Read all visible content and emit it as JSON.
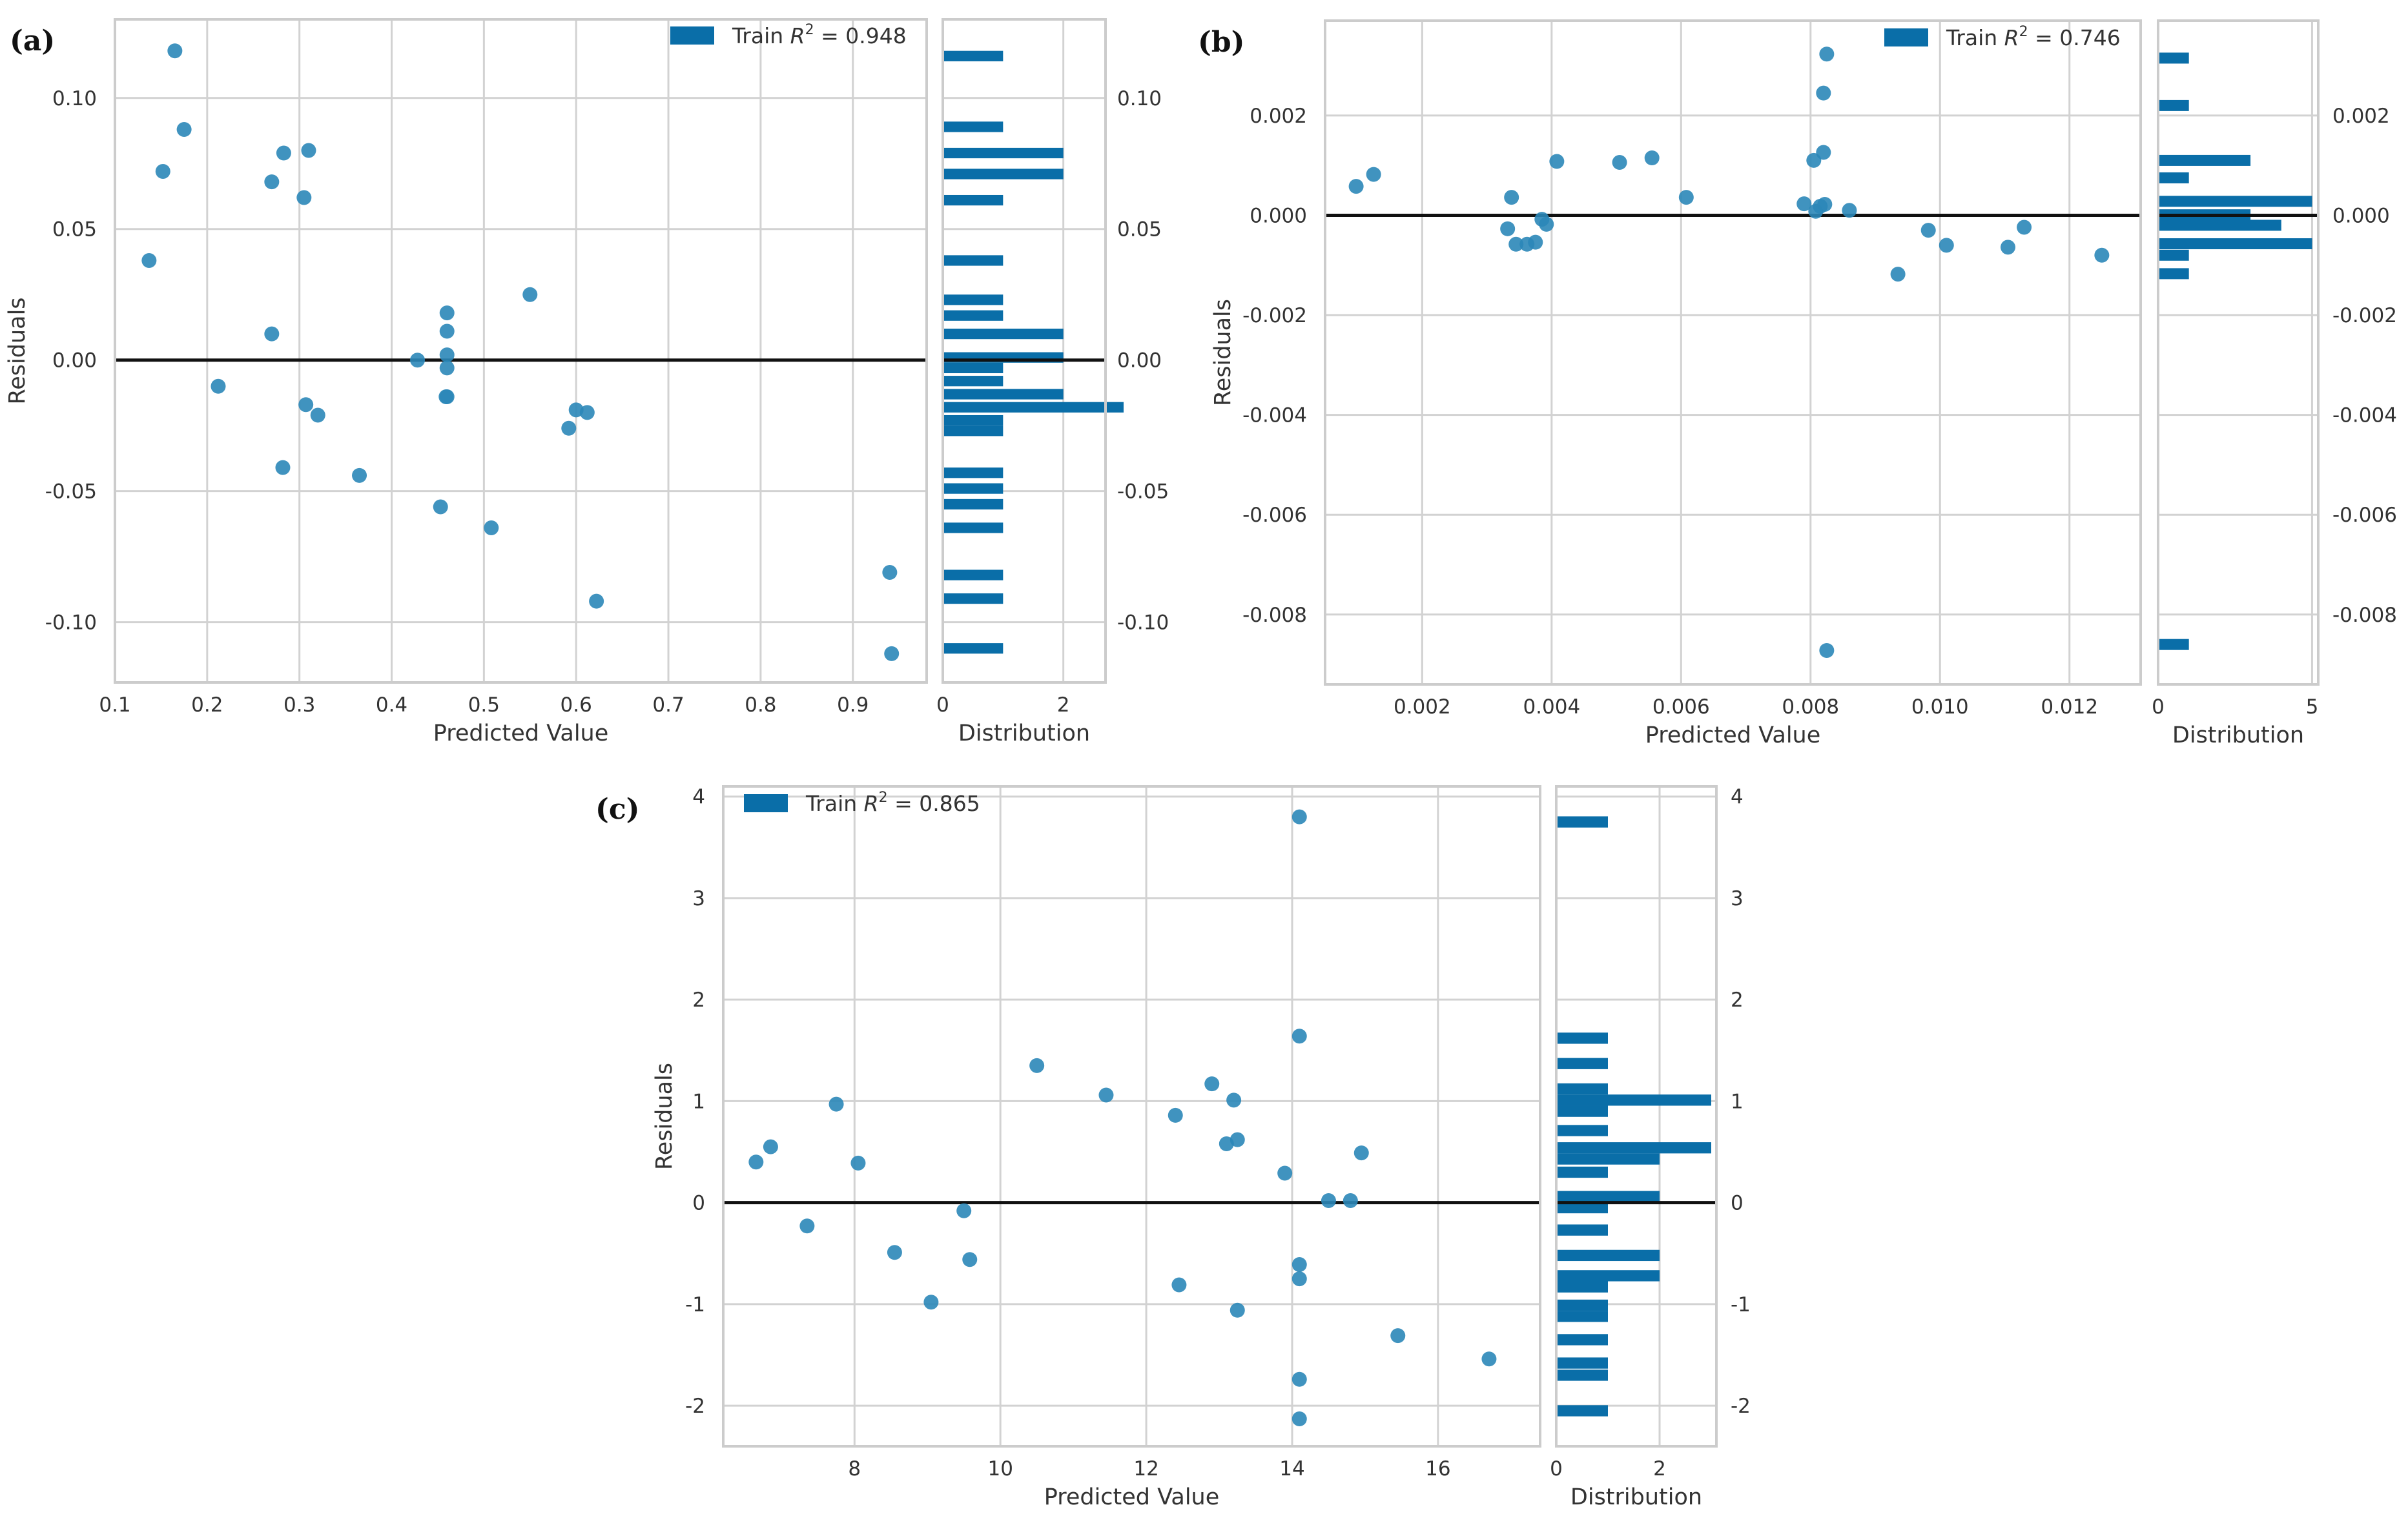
{
  "colors": {
    "point": "#2b87b8",
    "bar": "#0a6ea8",
    "grid": "#d2d2d2",
    "frame": "#cccccc",
    "zero": "#111111"
  },
  "chart_data": [
    {
      "id": "a",
      "panel_label": "(a)",
      "type": "scatter",
      "title": "",
      "xlabel": "Predicted Value",
      "ylabel": "Residuals",
      "hist_xlabel": "Distribution",
      "legend": {
        "name": "Train",
        "r2_label": "R",
        "r2_exp": "2",
        "r2_value": "= 0.948"
      },
      "xlim": [
        0.1,
        0.98
      ],
      "ylim": [
        -0.123,
        0.13
      ],
      "xticks": [
        0.1,
        0.2,
        0.3,
        0.4,
        0.5,
        0.6,
        0.7,
        0.8,
        0.9
      ],
      "xtick_labels": [
        "0.1",
        "0.2",
        "0.3",
        "0.4",
        "0.5",
        "0.6",
        "0.7",
        "0.8",
        "0.9"
      ],
      "yticks": [
        0.1,
        0.05,
        0.0,
        -0.05,
        -0.1
      ],
      "ytick_labels": [
        "0.10",
        "0.05",
        "0.00",
        "-0.05",
        "-0.10"
      ],
      "points": [
        [
          0.165,
          0.118
        ],
        [
          0.175,
          0.088
        ],
        [
          0.152,
          0.072
        ],
        [
          0.137,
          0.038
        ],
        [
          0.283,
          0.079
        ],
        [
          0.31,
          0.08
        ],
        [
          0.27,
          0.068
        ],
        [
          0.305,
          0.062
        ],
        [
          0.27,
          0.01
        ],
        [
          0.212,
          -0.01
        ],
        [
          0.307,
          -0.017
        ],
        [
          0.32,
          -0.021
        ],
        [
          0.282,
          -0.041
        ],
        [
          0.365,
          -0.044
        ],
        [
          0.428,
          0.0
        ],
        [
          0.46,
          0.018
        ],
        [
          0.46,
          0.011
        ],
        [
          0.46,
          0.002
        ],
        [
          0.46,
          -0.003
        ],
        [
          0.46,
          -0.014
        ],
        [
          0.459,
          -0.014
        ],
        [
          0.453,
          -0.056
        ],
        [
          0.508,
          -0.064
        ],
        [
          0.55,
          0.025
        ],
        [
          0.6,
          -0.019
        ],
        [
          0.612,
          -0.02
        ],
        [
          0.592,
          -0.026
        ],
        [
          0.622,
          -0.092
        ],
        [
          0.94,
          -0.081
        ],
        [
          0.942,
          -0.112
        ]
      ],
      "hist": {
        "xlim": [
          0,
          2.7
        ],
        "xticks": [
          0,
          2
        ],
        "xtick_labels": [
          "0",
          "2"
        ],
        "bin_height": 0.004,
        "bins": [
          [
            0.116,
            1
          ],
          [
            0.089,
            1
          ],
          [
            0.079,
            2
          ],
          [
            0.071,
            2
          ],
          [
            0.061,
            1
          ],
          [
            0.038,
            1
          ],
          [
            0.023,
            1
          ],
          [
            0.017,
            1
          ],
          [
            0.01,
            2
          ],
          [
            0.001,
            2
          ],
          [
            -0.003,
            1
          ],
          [
            -0.008,
            1
          ],
          [
            -0.013,
            2
          ],
          [
            -0.018,
            3
          ],
          [
            -0.023,
            1
          ],
          [
            -0.027,
            1
          ],
          [
            -0.043,
            1
          ],
          [
            -0.049,
            1
          ],
          [
            -0.055,
            1
          ],
          [
            -0.064,
            1
          ],
          [
            -0.082,
            1
          ],
          [
            -0.091,
            1
          ],
          [
            -0.11,
            1
          ]
        ]
      },
      "right_ytick_labels": [
        "0.10",
        "0.05",
        "0.00",
        "-0.05",
        "-0.10"
      ]
    },
    {
      "id": "b",
      "panel_label": "(b)",
      "type": "scatter",
      "title": "",
      "xlabel": "Predicted Value",
      "ylabel": "Residuals",
      "hist_xlabel": "Distribution",
      "legend": {
        "name": "Train",
        "r2_label": "R",
        "r2_exp": "2",
        "r2_value": "= 0.746"
      },
      "xlim": [
        0.0005,
        0.0131
      ],
      "ylim": [
        -0.0094,
        0.0039
      ],
      "xticks": [
        0.002,
        0.004,
        0.006,
        0.008,
        0.01,
        0.012
      ],
      "xtick_labels": [
        "0.002",
        "0.004",
        "0.006",
        "0.008",
        "0.010",
        "0.012"
      ],
      "yticks": [
        0.002,
        0.0,
        -0.002,
        -0.004,
        -0.006,
        -0.008
      ],
      "ytick_labels": [
        "0.002",
        "0.000",
        "-0.002",
        "-0.004",
        "-0.006",
        "-0.008"
      ],
      "points": [
        [
          0.00098,
          0.00058
        ],
        [
          0.00125,
          0.00082
        ],
        [
          0.00332,
          -0.00027
        ],
        [
          0.00338,
          0.00036
        ],
        [
          0.00345,
          -0.00058
        ],
        [
          0.00362,
          -0.00058
        ],
        [
          0.00375,
          -0.00054
        ],
        [
          0.00385,
          -8e-05
        ],
        [
          0.00392,
          -0.00018
        ],
        [
          0.00408,
          0.00108
        ],
        [
          0.00505,
          0.00106
        ],
        [
          0.00555,
          0.00115
        ],
        [
          0.00608,
          0.00036
        ],
        [
          0.0079,
          0.00023
        ],
        [
          0.00805,
          0.0011
        ],
        [
          0.00808,
          8e-05
        ],
        [
          0.00815,
          0.00018
        ],
        [
          0.0082,
          0.00126
        ],
        [
          0.0082,
          0.00245
        ],
        [
          0.00825,
          0.00323
        ],
        [
          0.00822,
          0.00022
        ],
        [
          0.0086,
          0.0001
        ],
        [
          0.00825,
          -0.00872
        ],
        [
          0.00935,
          -0.00118
        ],
        [
          0.00982,
          -0.0003
        ],
        [
          0.0101,
          -0.0006
        ],
        [
          0.01105,
          -0.00064
        ],
        [
          0.0113,
          -0.00024
        ],
        [
          0.0125,
          -0.0008
        ]
      ],
      "hist": {
        "xlim": [
          0,
          5.2
        ],
        "xticks": [
          0,
          5
        ],
        "xtick_labels": [
          "0",
          "5"
        ],
        "bin_height": 0.00022,
        "bins": [
          [
            0.00315,
            1
          ],
          [
            0.0022,
            1
          ],
          [
            0.0011,
            3
          ],
          [
            0.00075,
            1
          ],
          [
            0.00028,
            5
          ],
          [
            1e-05,
            3
          ],
          [
            -0.0002,
            4
          ],
          [
            -0.00057,
            5
          ],
          [
            -0.0008,
            1
          ],
          [
            -0.00117,
            1
          ],
          [
            -0.0086,
            1
          ]
        ]
      },
      "right_ytick_labels": [
        "0.002",
        "0.000",
        "-0.002",
        "-0.004",
        "-0.006",
        "-0.008"
      ]
    },
    {
      "id": "c",
      "panel_label": "(c)",
      "type": "scatter",
      "title": "",
      "xlabel": "Predicted Value",
      "ylabel": "Residuals",
      "hist_xlabel": "Distribution",
      "legend": {
        "name": "Train",
        "r2_label": "R",
        "r2_exp": "2",
        "r2_value": "= 0.865"
      },
      "xlim": [
        6.2,
        17.4
      ],
      "ylim": [
        -2.4,
        4.1
      ],
      "xticks": [
        8,
        10,
        12,
        14,
        16
      ],
      "xtick_labels": [
        "8",
        "10",
        "12",
        "14",
        "16"
      ],
      "yticks": [
        4,
        3,
        2,
        1,
        0,
        -1,
        -2
      ],
      "ytick_labels": [
        "4",
        "3",
        "2",
        "1",
        "0",
        "-1",
        "-2"
      ],
      "points": [
        [
          6.65,
          0.4
        ],
        [
          6.85,
          0.55
        ],
        [
          7.35,
          -0.23
        ],
        [
          7.75,
          0.97
        ],
        [
          8.05,
          0.39
        ],
        [
          8.55,
          -0.49
        ],
        [
          9.05,
          -0.98
        ],
        [
          9.5,
          -0.08
        ],
        [
          9.58,
          -0.56
        ],
        [
          10.5,
          1.35
        ],
        [
          11.45,
          1.06
        ],
        [
          12.4,
          0.86
        ],
        [
          12.45,
          -0.81
        ],
        [
          12.9,
          1.17
        ],
        [
          13.1,
          0.58
        ],
        [
          13.2,
          1.01
        ],
        [
          13.25,
          0.62
        ],
        [
          13.25,
          -1.06
        ],
        [
          13.9,
          0.29
        ],
        [
          14.1,
          3.8
        ],
        [
          14.1,
          1.64
        ],
        [
          14.1,
          -0.61
        ],
        [
          14.1,
          -0.75
        ],
        [
          14.1,
          -1.74
        ],
        [
          14.1,
          -2.13
        ],
        [
          14.5,
          0.02
        ],
        [
          14.8,
          0.02
        ],
        [
          14.95,
          0.49
        ],
        [
          15.45,
          -1.31
        ],
        [
          16.7,
          -1.54
        ]
      ],
      "hist": {
        "xlim": [
          0,
          3.1
        ],
        "xticks": [
          0,
          2
        ],
        "xtick_labels": [
          "0",
          "2"
        ],
        "bin_height": 0.11,
        "bins": [
          [
            3.75,
            1
          ],
          [
            1.62,
            1
          ],
          [
            1.37,
            1
          ],
          [
            1.12,
            1
          ],
          [
            1.01,
            3
          ],
          [
            0.9,
            1
          ],
          [
            0.71,
            1
          ],
          [
            0.54,
            3
          ],
          [
            0.43,
            2
          ],
          [
            0.3,
            1
          ],
          [
            0.06,
            2
          ],
          [
            -0.05,
            1
          ],
          [
            -0.27,
            1
          ],
          [
            -0.52,
            2
          ],
          [
            -0.72,
            2
          ],
          [
            -0.83,
            1
          ],
          [
            -1.01,
            1
          ],
          [
            -1.12,
            1
          ],
          [
            -1.35,
            1
          ],
          [
            -1.58,
            1
          ],
          [
            -1.7,
            1
          ],
          [
            -2.05,
            1
          ]
        ]
      },
      "right_ytick_labels": [
        "4",
        "3",
        "2",
        "1",
        "0",
        "-1",
        "-2"
      ]
    }
  ]
}
